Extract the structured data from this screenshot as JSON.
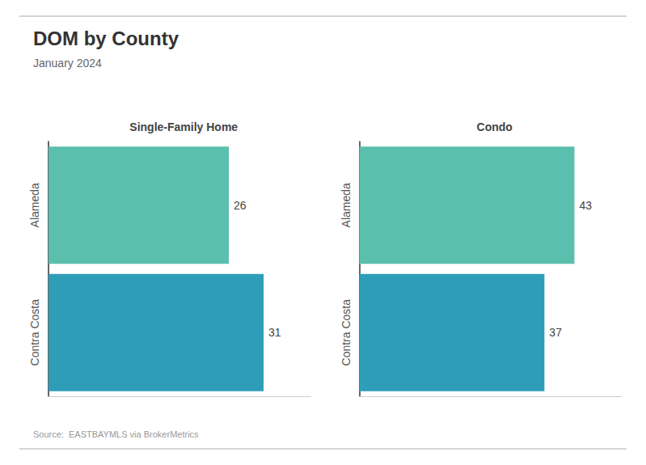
{
  "title": "DOM by County",
  "subtitle": "January 2024",
  "annotations": [
    "Source:  EASTBAYMLS via BrokerMetrics"
  ],
  "chart_data": [
    {
      "type": "bar",
      "orientation": "horizontal",
      "title": "Single-Family Home",
      "categories": [
        "Alameda",
        "Contra Costa"
      ],
      "values": [
        26,
        31
      ],
      "colors": [
        "#5bbfad",
        "#2d9db8"
      ],
      "xlim": [
        0,
        37.82
      ],
      "data_labels": true,
      "tick_labels": "y",
      "grid": false
    },
    {
      "type": "bar",
      "orientation": "horizontal",
      "title": "Condo",
      "categories": [
        "Alameda",
        "Contra Costa"
      ],
      "values": [
        43,
        37
      ],
      "colors": [
        "#5bbfad",
        "#2d9db8"
      ],
      "xlim": [
        0,
        52.46
      ],
      "data_labels": true,
      "tick_labels": "y",
      "grid": false
    }
  ]
}
